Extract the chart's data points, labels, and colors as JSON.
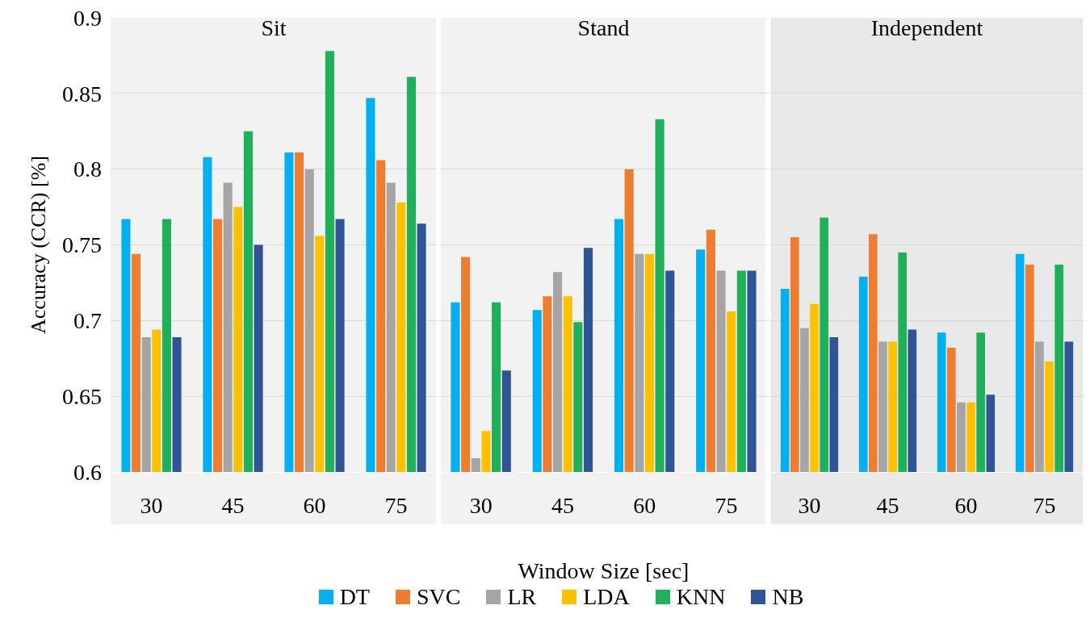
{
  "chart_data": [
    {
      "type": "bar",
      "title": "Sit",
      "ylabel": "Accuracy (CCR) [%]",
      "categories": [
        "30",
        "45",
        "60",
        "75"
      ],
      "ylim": [
        0.6,
        0.9
      ],
      "yticks": [
        0.6,
        0.65,
        0.7,
        0.75,
        0.8,
        0.85,
        0.9
      ],
      "grid": "y",
      "series": [
        {
          "color": "#00b0f0",
          "values": [
            0.767,
            0.808,
            0.811,
            0.847
          ]
        },
        {
          "color": "#ed7d31",
          "values": [
            0.744,
            0.767,
            0.811,
            0.806
          ]
        },
        {
          "color": "#a5a5a5",
          "values": [
            0.689,
            0.791,
            0.8,
            0.791
          ]
        },
        {
          "color": "#ffc000",
          "values": [
            0.694,
            0.775,
            0.756,
            0.778
          ]
        },
        {
          "color": "#21b05a",
          "values": [
            0.767,
            0.825,
            0.878,
            0.861
          ]
        },
        {
          "color": "#2f5597",
          "values": [
            0.689,
            0.75,
            0.767,
            0.764
          ]
        }
      ]
    },
    {
      "type": "bar",
      "title": "Stand",
      "xlabel": "Window Size [sec]",
      "categories": [
        "30",
        "45",
        "60",
        "75"
      ],
      "ylim": [
        0.6,
        0.9
      ],
      "yticks": [
        0.6,
        0.65,
        0.7,
        0.75,
        0.8,
        0.85,
        0.9
      ],
      "grid": "y",
      "legend": "bottom",
      "tick_labels": "x",
      "series": [
        {
          "name": "DT",
          "color": "#00b0f0",
          "values": [
            0.712,
            0.707,
            0.767,
            0.747
          ]
        },
        {
          "name": "SVC",
          "color": "#ed7d31",
          "values": [
            0.742,
            0.716,
            0.8,
            0.76
          ]
        },
        {
          "name": "LR",
          "color": "#a5a5a5",
          "values": [
            0.609,
            0.732,
            0.744,
            0.733
          ]
        },
        {
          "name": "LDA",
          "color": "#ffc000",
          "values": [
            0.627,
            0.716,
            0.744,
            0.706
          ]
        },
        {
          "name": "KNN",
          "color": "#21b05a",
          "values": [
            0.712,
            0.699,
            0.833,
            0.733
          ]
        },
        {
          "name": "NB",
          "color": "#2f5597",
          "values": [
            0.667,
            0.748,
            0.733,
            0.733
          ]
        }
      ]
    },
    {
      "type": "bar",
      "title": "Independent",
      "categories": [
        "30",
        "45",
        "60",
        "75"
      ],
      "ylim": [
        0.6,
        0.9
      ],
      "yticks": [
        0.6,
        0.65,
        0.7,
        0.75,
        0.8,
        0.85,
        0.9
      ],
      "grid": "y",
      "tick_labels": "x",
      "series": [
        {
          "color": "#00b0f0",
          "values": [
            0.721,
            0.729,
            0.692,
            0.744
          ]
        },
        {
          "color": "#ed7d31",
          "values": [
            0.755,
            0.757,
            0.682,
            0.737
          ]
        },
        {
          "color": "#a5a5a5",
          "values": [
            0.695,
            0.686,
            0.646,
            0.686
          ]
        },
        {
          "color": "#ffc000",
          "values": [
            0.711,
            0.686,
            0.646,
            0.673
          ]
        },
        {
          "color": "#21b05a",
          "values": [
            0.768,
            0.745,
            0.692,
            0.737
          ]
        },
        {
          "color": "#2f5597",
          "values": [
            0.689,
            0.694,
            0.651,
            0.686
          ]
        }
      ]
    }
  ]
}
